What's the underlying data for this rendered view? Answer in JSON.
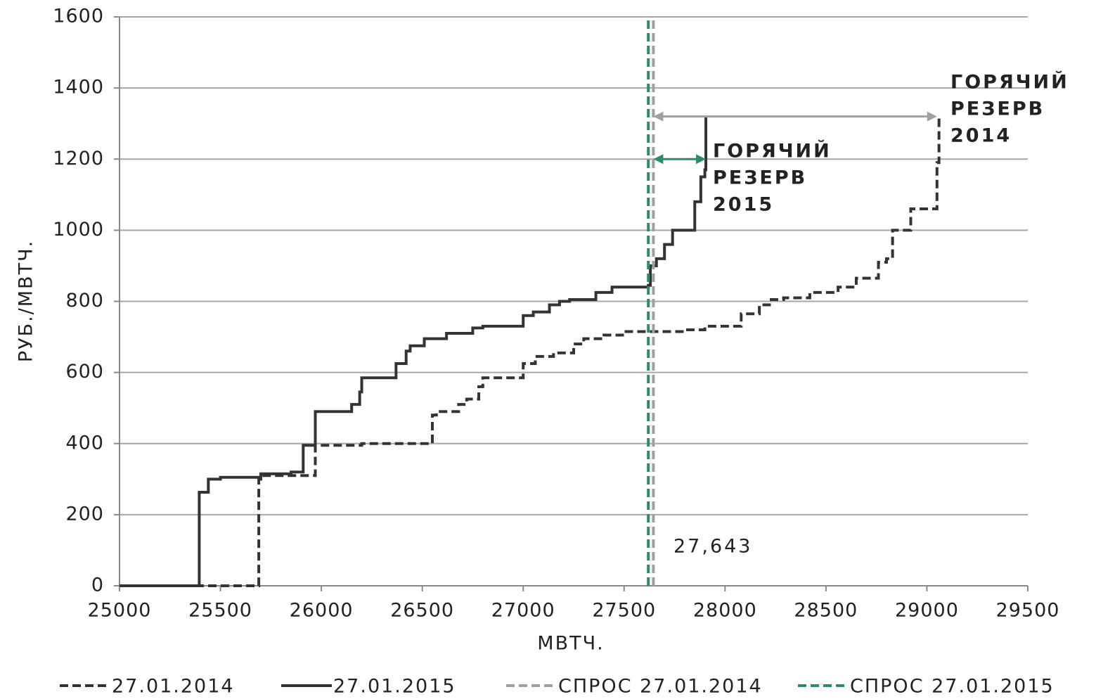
{
  "chart_data": {
    "type": "step",
    "xlabel": "МВТЧ.",
    "ylabel": "РУБ./МВТЧ.",
    "xlim": [
      25000,
      29500
    ],
    "xticks": [
      25000,
      25500,
      26000,
      26500,
      27000,
      27500,
      28000,
      28500,
      29000,
      29500
    ],
    "ylim": [
      0,
      1600
    ],
    "yticks": [
      0,
      200,
      400,
      600,
      800,
      1000,
      1200,
      1400,
      1600
    ],
    "grid": true,
    "legend": "bottom",
    "series": [
      {
        "name": "27.01.2014",
        "color": "#333333",
        "style": "dashed",
        "x": [
          25000,
          25690,
          25700,
          25970,
          26200,
          26550,
          26570,
          26680,
          26720,
          26780,
          26800,
          27000,
          27060,
          27150,
          27250,
          27300,
          27400,
          27500,
          27800,
          27900,
          28080,
          28170,
          28220,
          28290,
          28420,
          28560,
          28650,
          28760,
          28800,
          28830,
          28920,
          29050,
          29060
        ],
        "values": [
          0,
          300,
          310,
          395,
          400,
          480,
          490,
          510,
          525,
          560,
          585,
          625,
          645,
          655,
          680,
          695,
          705,
          715,
          720,
          730,
          765,
          790,
          805,
          810,
          825,
          840,
          865,
          910,
          920,
          1000,
          1060,
          1190,
          1320
        ]
      },
      {
        "name": "27.01.2015",
        "color": "#333333",
        "style": "solid",
        "x": [
          25000,
          25395,
          25440,
          25500,
          25700,
          25850,
          25910,
          25970,
          26150,
          26190,
          26200,
          26370,
          26420,
          26440,
          26510,
          26620,
          26750,
          26800,
          27000,
          27050,
          27130,
          27180,
          27230,
          27360,
          27440,
          27620,
          27630,
          27660,
          27700,
          27740,
          27850,
          27880,
          27900,
          27905
        ],
        "values": [
          0,
          263,
          300,
          305,
          315,
          320,
          395,
          490,
          510,
          545,
          585,
          625,
          660,
          675,
          695,
          710,
          725,
          730,
          760,
          770,
          790,
          800,
          805,
          825,
          840,
          845,
          900,
          920,
          960,
          1000,
          1080,
          1150,
          1170,
          1320
        ]
      },
      {
        "name": "СПРОС 27.01.2014",
        "color": "#a0a0a0",
        "style": "dashed",
        "x": [
          27645,
          27645
        ],
        "values": [
          0,
          1600
        ]
      },
      {
        "name": "СПРОС 27.01.2015",
        "color": "#2e8b6a",
        "style": "dashed",
        "x": [
          27620,
          27620
        ],
        "values": [
          0,
          1600
        ]
      }
    ],
    "arrows": [
      {
        "color": "#a0a0a0",
        "x": [
          27645,
          29050
        ],
        "y": 1320
      },
      {
        "color": "#2e8b6a",
        "x": [
          27645,
          27905
        ],
        "y": 1200
      }
    ],
    "annotations": [
      {
        "lines": [
          "ГОРЯЧИЙ",
          "РЕЗЕРВ",
          "2015"
        ],
        "bold": true
      },
      {
        "lines": [
          "ГОРЯЧИЙ",
          "РЕЗЕРВ",
          "2014"
        ],
        "bold": true
      },
      {
        "lines": [
          "27,643"
        ],
        "bold": false
      }
    ]
  }
}
